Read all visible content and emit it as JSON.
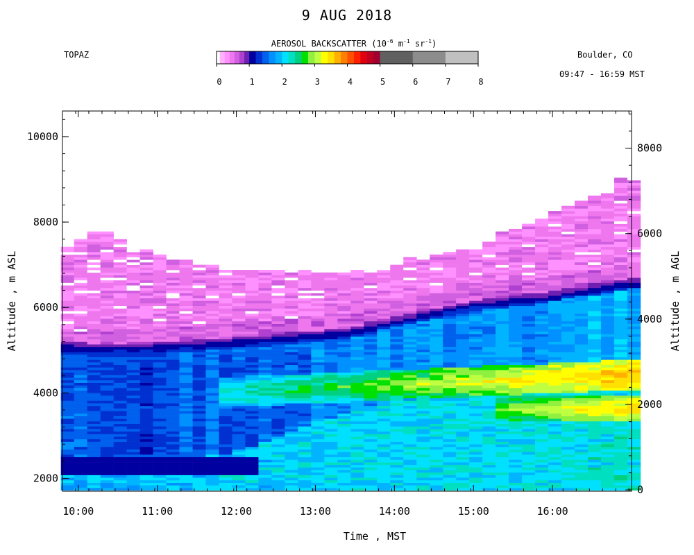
{
  "chart_data": {
    "type": "heatmap",
    "title": "9 AUG 2018",
    "instrument": "TOPAZ",
    "location": "Boulder, CO",
    "time_range": "09:47 - 16:59 MST",
    "colorbar": {
      "label_main": "AEROSOL BACKSCATTER (10",
      "label_exp1": "-6",
      "label_unit_m": " m",
      "label_exp2": "-1",
      "label_unit_sr": " sr",
      "label_exp3": "-1",
      "label_close": ")",
      "ticks": [
        "0",
        "1",
        "2",
        "3",
        "4",
        "5",
        "6",
        "7",
        "8"
      ],
      "stops": [
        {
          "lo": 0.0,
          "hi": 0.1,
          "color": "#ffffff"
        },
        {
          "lo": 0.1,
          "hi": 0.25,
          "color": "#ffb0ff"
        },
        {
          "lo": 0.25,
          "hi": 0.4,
          "color": "#ff90ff"
        },
        {
          "lo": 0.4,
          "hi": 0.55,
          "color": "#ee77ee"
        },
        {
          "lo": 0.55,
          "hi": 0.7,
          "color": "#d060e0"
        },
        {
          "lo": 0.7,
          "hi": 0.85,
          "color": "#b040d0"
        },
        {
          "lo": 0.85,
          "hi": 1.0,
          "color": "#7020b0"
        },
        {
          "lo": 1.0,
          "hi": 1.2,
          "color": "#0000a0"
        },
        {
          "lo": 1.2,
          "hi": 1.4,
          "color": "#0030d0"
        },
        {
          "lo": 1.4,
          "hi": 1.6,
          "color": "#0060ee"
        },
        {
          "lo": 1.6,
          "hi": 1.8,
          "color": "#0090ff"
        },
        {
          "lo": 1.8,
          "hi": 2.0,
          "color": "#00b4ff"
        },
        {
          "lo": 2.0,
          "hi": 2.2,
          "color": "#00e0ff"
        },
        {
          "lo": 2.2,
          "hi": 2.4,
          "color": "#00e0c0"
        },
        {
          "lo": 2.4,
          "hi": 2.6,
          "color": "#00d080"
        },
        {
          "lo": 2.6,
          "hi": 2.8,
          "color": "#00e000"
        },
        {
          "lo": 2.8,
          "hi": 3.0,
          "color": "#90f040"
        },
        {
          "lo": 3.0,
          "hi": 3.2,
          "color": "#c0ff40"
        },
        {
          "lo": 3.2,
          "hi": 3.4,
          "color": "#ffff00"
        },
        {
          "lo": 3.4,
          "hi": 3.6,
          "color": "#ffe000"
        },
        {
          "lo": 3.6,
          "hi": 3.8,
          "color": "#ffb000"
        },
        {
          "lo": 3.8,
          "hi": 4.0,
          "color": "#ff8000"
        },
        {
          "lo": 4.0,
          "hi": 4.2,
          "color": "#ff5000"
        },
        {
          "lo": 4.2,
          "hi": 4.4,
          "color": "#ff2000"
        },
        {
          "lo": 4.4,
          "hi": 4.6,
          "color": "#e00010"
        },
        {
          "lo": 4.6,
          "hi": 4.8,
          "color": "#c00020"
        },
        {
          "lo": 4.8,
          "hi": 5.0,
          "color": "#a00030"
        },
        {
          "lo": 5.0,
          "hi": 6.0,
          "color": "#606060"
        },
        {
          "lo": 6.0,
          "hi": 7.0,
          "color": "#8c8c8c"
        },
        {
          "lo": 7.0,
          "hi": 8.0,
          "color": "#c0c0c0"
        }
      ]
    },
    "x_axis": {
      "label": "Time , MST",
      "tick_labels": [
        "10:00",
        "11:00",
        "12:00",
        "13:00",
        "14:00",
        "15:00",
        "16:00"
      ],
      "range_hours": [
        9.8,
        17.0
      ]
    },
    "y_axis_left": {
      "label": "Altitude , m ASL",
      "tick_labels": [
        "2000",
        "4000",
        "6000",
        "8000",
        "10000"
      ],
      "range": [
        1700,
        10600
      ]
    },
    "y_axis_right": {
      "label": "Altitude , m AGL",
      "tick_labels": [
        "0",
        "2000",
        "4000",
        "6000",
        "8000"
      ]
    },
    "data_start_hour": 9.78,
    "data_end_hour": 16.99,
    "profile_interval_min": 10,
    "bin_height_m": 60,
    "features": {
      "top_of_data_asl": [
        [
          9.78,
          7400
        ],
        [
          10.2,
          7800
        ],
        [
          11.0,
          7200
        ],
        [
          12.0,
          6800
        ],
        [
          13.0,
          6850
        ],
        [
          13.6,
          6750
        ],
        [
          14.0,
          7000
        ],
        [
          15.0,
          7400
        ],
        [
          16.0,
          8200
        ],
        [
          16.9,
          8950
        ]
      ],
      "plume_base_asl": [
        [
          9.78,
          4900
        ],
        [
          10.5,
          4880
        ],
        [
          11.5,
          4950
        ],
        [
          12.5,
          5100
        ],
        [
          13.4,
          5250
        ],
        [
          14.0,
          5500
        ],
        [
          15.0,
          5900
        ],
        [
          16.0,
          6100
        ],
        [
          16.9,
          6400
        ]
      ],
      "mixed_layer_top_asl": [
        [
          9.78,
          2100
        ],
        [
          11.0,
          2300
        ],
        [
          12.0,
          2600
        ],
        [
          13.0,
          3300
        ],
        [
          14.0,
          3800
        ],
        [
          15.0,
          3900
        ],
        [
          16.0,
          4200
        ],
        [
          16.9,
          4500
        ]
      ],
      "high_backscatter_layer": {
        "start_hour": 14.4,
        "end_hour": 16.9,
        "center_asl": 4000,
        "peak_value": 3.8
      }
    }
  }
}
